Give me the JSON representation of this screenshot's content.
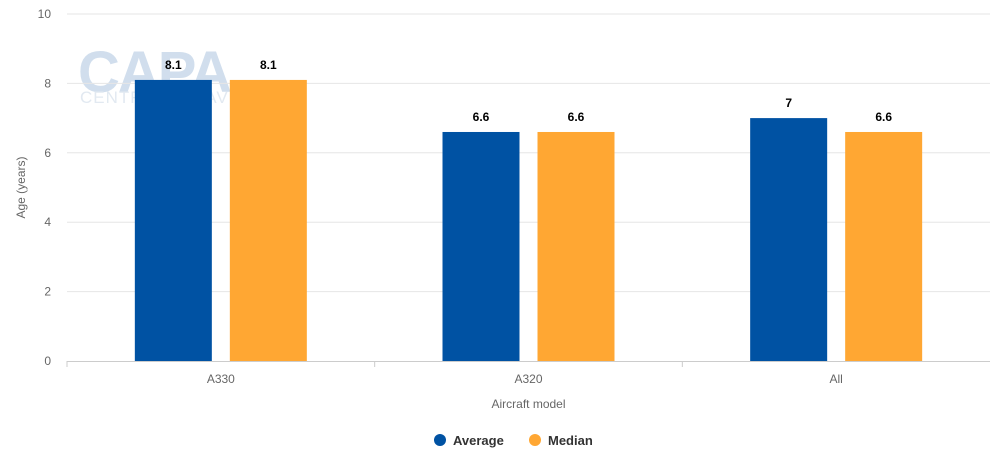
{
  "chart_data": {
    "type": "bar",
    "categories": [
      "A330",
      "A320",
      "All"
    ],
    "series": [
      {
        "name": "Average",
        "values": [
          8.1,
          6.6,
          7
        ],
        "labels": [
          "8.1",
          "6.6",
          "7"
        ],
        "color": "#0052a3"
      },
      {
        "name": "Median",
        "values": [
          8.1,
          6.6,
          6.6
        ],
        "labels": [
          "8.1",
          "6.6",
          "6.6"
        ],
        "color": "#ffa733"
      }
    ],
    "title": "",
    "xlabel": "Aircraft model",
    "ylabel": "Age (years)",
    "ylim": [
      0,
      10
    ],
    "yticks": [
      "0",
      "2",
      "4",
      "6",
      "8",
      "10"
    ],
    "grid": true,
    "legend_position": "bottom-center"
  },
  "watermark": {
    "big": "CAPA",
    "small": "CENTRE FOR AVIATION"
  },
  "colors": {
    "grid": "#e6e6e6",
    "axis": "#cccccc",
    "tick_text": "#666666"
  }
}
